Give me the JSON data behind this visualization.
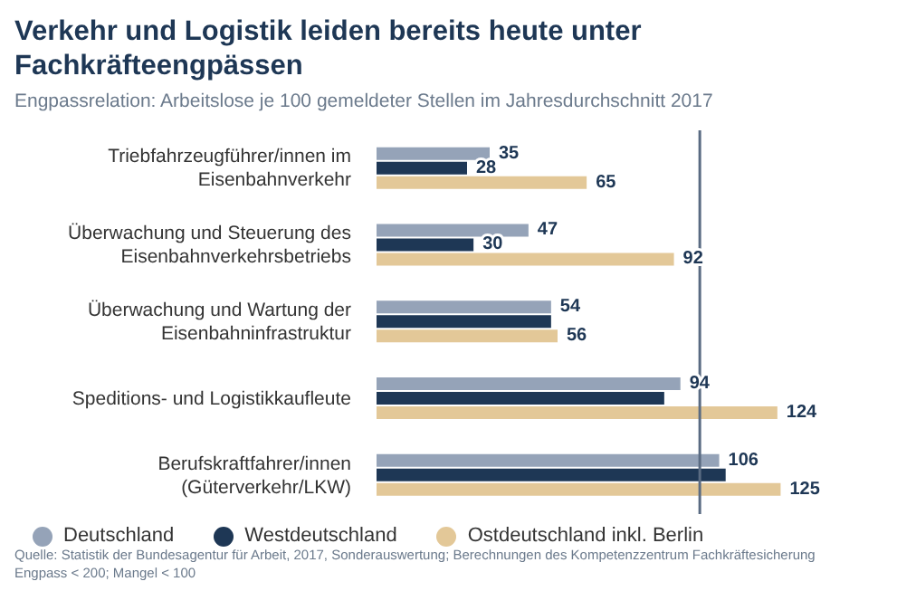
{
  "chart_data": {
    "type": "bar",
    "orientation": "horizontal",
    "title": "Verkehr und Logistik leiden bereits heute unter Fachkräfteengpässen",
    "subtitle": "Engpassrelation: Arbeitslose je 100 gemeldeter Stellen im Jahresdurchschnitt 2017",
    "categories": [
      "Triebfahrzeugführer/innen im Eisenbahnverkehr",
      "Überwachung und Steuerung des Eisenbahnverkehrsbetriebs",
      "Überwachung und Wartung der Eisenbahninfrastruktur",
      "Speditions- und Logistikkaufleute",
      "Berufskraftfahrer/innen (Güterverkehr/LKW)"
    ],
    "series": [
      {
        "name": "Deutschland",
        "color": "#95a3b8",
        "values": [
          35,
          47,
          54,
          94,
          106
        ],
        "value_labels": [
          "35",
          "47",
          "54",
          "94",
          "106"
        ]
      },
      {
        "name": "Westdeutschland",
        "color": "#1e3755",
        "values": [
          28,
          30,
          54,
          89,
          108
        ],
        "value_labels": [
          "28",
          "30",
          null,
          null,
          null
        ]
      },
      {
        "name": "Ostdeutschland inkl. Berlin",
        "color": "#e3c898",
        "values": [
          65,
          92,
          56,
          124,
          125
        ],
        "value_labels": [
          "65",
          "92",
          "56",
          "124",
          "125"
        ]
      }
    ],
    "ref_lines": [
      {
        "axis": "x",
        "value": 100,
        "color": "#5a6b82"
      }
    ],
    "legend": "bottom left",
    "grid": false,
    "annotations": [
      "Quelle: Statistik der Bundesagentur für Arbeit, 2017, Sonderauswertung; Berechnungen des Kompetenzzentrum Fachkräftesicherung",
      "Engpass < 200; Mangel < 100"
    ]
  }
}
